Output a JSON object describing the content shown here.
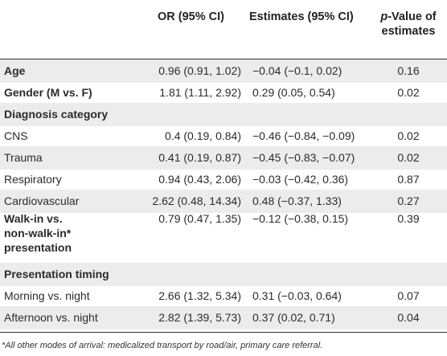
{
  "header": {
    "col1": "OR (95% CI)",
    "col2": "Estimates (95% CI)",
    "col3_italic": "p",
    "col3_line1_rest": "-Value of",
    "col3_line2": "estimates"
  },
  "rows": [
    {
      "label": "Age",
      "bold": true,
      "or": "0.96 (0.91, 1.02)",
      "est": "−0.04 (−0.1, 0.02)",
      "p": "0.16"
    },
    {
      "label": "Gender (M vs. F)",
      "bold": true,
      "or": "1.81 (1.11, 2.92)",
      "est": "0.29 (0.05, 0.54)",
      "p": "0.02"
    },
    {
      "label": "Diagnosis category",
      "bold": true,
      "or": "",
      "est": "",
      "p": ""
    },
    {
      "label": "CNS",
      "bold": false,
      "or": "0.4 (0.19, 0.84)",
      "est": "−0.46 (−0.84, −0.09)",
      "p": "0.02"
    },
    {
      "label": "Trauma",
      "bold": false,
      "or": "0.41 (0.19, 0.87)",
      "est": "−0.45 (−0.83, −0.07)",
      "p": "0.02"
    },
    {
      "label": "Respiratory",
      "bold": false,
      "or": "0.94 (0.43, 2.06)",
      "est": "−0.03 (−0.42, 0.36)",
      "p": "0.87"
    },
    {
      "label": "Cardiovascular",
      "bold": false,
      "or": "2.62 (0.48, 14.34)",
      "est": "0.48 (−0.37, 1.33)",
      "p": "0.27"
    },
    {
      "label_lines": [
        "Walk-in vs.",
        "non-walk-in*",
        "presentation"
      ],
      "bold": true,
      "or": "0.79 (0.47, 1.35)",
      "est": "−0.12 (−0.38, 0.15)",
      "p": "0.39"
    },
    {
      "label": "Presentation timing",
      "bold": true,
      "or": "",
      "est": "",
      "p": ""
    },
    {
      "label": "Morning vs. night",
      "bold": false,
      "or": "2.66 (1.32, 5.34)",
      "est": "0.31 (−0.03, 0.64)",
      "p": "0.07"
    },
    {
      "label": "Afternoon vs. night",
      "bold": false,
      "or": "2.82 (1.39, 5.73)",
      "est": "0.37 (0.02, 0.71)",
      "p": "0.04"
    }
  ],
  "footnote": "*All other modes of arrival: medicalized transport by road/air, primary care referral."
}
